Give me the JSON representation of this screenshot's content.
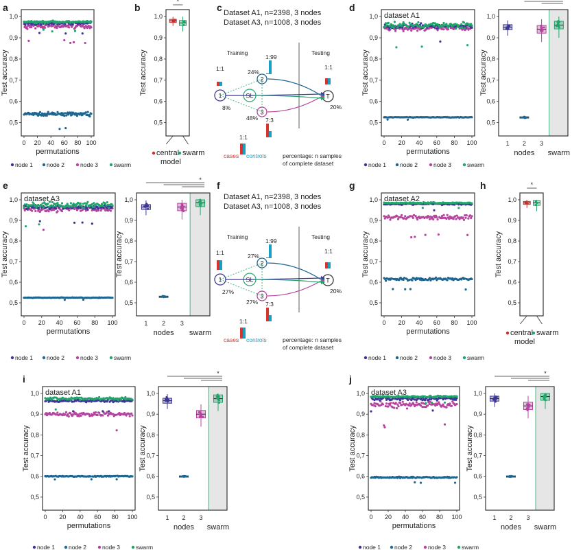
{
  "colors": {
    "node1": "#3c3696",
    "node2": "#1f6691",
    "node3": "#b5449f",
    "swarm": "#21a56a",
    "central": "#c9302c",
    "cases": "#d9342b",
    "controls": "#1a9ec4",
    "shade": "#e6e6e6"
  },
  "panel_labels": {
    "a": "a",
    "b": "b",
    "c": "c",
    "d": "d",
    "e": "e",
    "f": "f",
    "g": "g",
    "h": "h",
    "i": "i",
    "j": "j"
  },
  "common": {
    "ylabel": "Test accuracy",
    "xlabel": "permutations",
    "nodes_label": "nodes",
    "swarm_label": "swarm",
    "star": "*",
    "legend": [
      "node 1",
      "node 2",
      "node 3",
      "swarm"
    ],
    "central_legend": [
      "central\nmodel",
      "swarm"
    ],
    "node_ticks": [
      "1",
      "2",
      "3"
    ],
    "y_ticks": [
      "0,5",
      "0,6",
      "0,7",
      "0,8",
      "0,9",
      "1,0"
    ],
    "x_ticks": [
      "0",
      "20",
      "40",
      "60",
      "80",
      "100"
    ]
  },
  "diagram": {
    "c": {
      "line1": "Dataset A1, n=2398, 3 nodes",
      "line2": "Dataset A3, n=1008, 3 nodes",
      "training": "Training",
      "testing": "Testing",
      "sl": "SL",
      "n1": "1",
      "n2": "2",
      "n3": "3",
      "t": "T",
      "p1": "8%",
      "p2": "24%",
      "p3": "48%",
      "pt": "20%",
      "r1": "1:1",
      "r2": "1:99",
      "r3": "7:3",
      "rt": "1:1",
      "rkey": "1:1",
      "cases": "cases",
      "controls": "controls",
      "note1": "percentage: n samples",
      "note2": "of complete dataset"
    },
    "f": {
      "line1": "Dataset A1, n=2398, 3 nodes",
      "line2": "Dataset A3, n=1008, 3 nodes",
      "training": "Training",
      "testing": "Testing",
      "sl": "SL",
      "n1": "1",
      "n2": "2",
      "n3": "3",
      "t": "T",
      "p1": "27%",
      "p2": "27%",
      "p3": "27%",
      "pt": "20%",
      "r1": "1:1",
      "r2": "1:99",
      "r3": "7:3",
      "rt": "1:1",
      "rkey": "1:1",
      "cases": "cases",
      "controls": "controls",
      "note1": "percentage: n samples",
      "note2": "of complete dataset"
    }
  },
  "chart_data": [
    {
      "panel": "a",
      "type": "scatter",
      "title": "",
      "xlabel": "permutations",
      "ylabel": "Test accuracy",
      "xlim": [
        0,
        100
      ],
      "ylim": [
        0.45,
        1.02
      ],
      "series": [
        {
          "name": "node 1",
          "mean": 0.97,
          "spread": 0.01
        },
        {
          "name": "node 2",
          "mean": 0.54,
          "spread": 0.012
        },
        {
          "name": "node 3",
          "mean": 0.955,
          "spread": 0.015
        },
        {
          "name": "swarm",
          "mean": 0.975,
          "spread": 0.008
        }
      ]
    },
    {
      "panel": "b",
      "type": "box",
      "categories": [
        "central model",
        "swarm"
      ],
      "medians": [
        0.98,
        0.97
      ],
      "ylim": [
        0.45,
        1.02
      ],
      "significance": "*"
    },
    {
      "panel": "d",
      "type": "scatter",
      "title": "dataset A1",
      "xlabel": "permutations",
      "ylabel": "Test accuracy",
      "xlim": [
        0,
        100
      ],
      "ylim": [
        0.45,
        1.02
      ],
      "series": [
        {
          "name": "node 1",
          "mean": 0.955,
          "spread": 0.015
        },
        {
          "name": "node 2",
          "mean": 0.525,
          "spread": 0.002
        },
        {
          "name": "node 3",
          "mean": 0.945,
          "spread": 0.018
        },
        {
          "name": "swarm",
          "mean": 0.96,
          "spread": 0.02
        }
      ]
    },
    {
      "panel": "d-box",
      "type": "box",
      "categories": [
        "1",
        "2",
        "3",
        "swarm"
      ],
      "medians": [
        0.95,
        0.525,
        0.94,
        0.96
      ],
      "ylim": [
        0.45,
        1.02
      ],
      "significance": "*"
    },
    {
      "panel": "e",
      "type": "scatter",
      "title": "dataset A3",
      "xlabel": "permutations",
      "ylabel": "Test accuracy",
      "xlim": [
        0,
        100
      ],
      "ylim": [
        0.45,
        1.02
      ],
      "series": [
        {
          "name": "node 1",
          "mean": 0.965,
          "spread": 0.015
        },
        {
          "name": "node 2",
          "mean": 0.525,
          "spread": 0.002
        },
        {
          "name": "node 3",
          "mean": 0.955,
          "spread": 0.02
        },
        {
          "name": "swarm",
          "mean": 0.975,
          "spread": 0.02
        }
      ]
    },
    {
      "panel": "e-box",
      "type": "box",
      "categories": [
        "1",
        "2",
        "3",
        "swarm"
      ],
      "medians": [
        0.965,
        0.53,
        0.965,
        0.985
      ],
      "ylim": [
        0.45,
        1.02
      ],
      "significance": "*"
    },
    {
      "panel": "g",
      "type": "scatter",
      "title": "dataset A2",
      "xlabel": "permutations",
      "ylabel": "Test accuracy",
      "xlim": [
        0,
        100
      ],
      "ylim": [
        0.45,
        1.02
      ],
      "series": [
        {
          "name": "node 1",
          "mean": 0.98,
          "spread": 0.006
        },
        {
          "name": "node 2",
          "mean": 0.615,
          "spread": 0.01
        },
        {
          "name": "node 3",
          "mean": 0.915,
          "spread": 0.018
        },
        {
          "name": "swarm",
          "mean": 0.985,
          "spread": 0.005
        }
      ]
    },
    {
      "panel": "h",
      "type": "box",
      "categories": [
        "central model",
        "swarm"
      ],
      "medians": [
        0.985,
        0.985
      ],
      "ylim": [
        0.45,
        1.02
      ],
      "significance": "*"
    },
    {
      "panel": "i",
      "type": "scatter",
      "title": "dataset A1",
      "xlabel": "permutations",
      "ylabel": "Test accuracy",
      "xlim": [
        0,
        100
      ],
      "ylim": [
        0.45,
        1.02
      ],
      "series": [
        {
          "name": "node 1",
          "mean": 0.965,
          "spread": 0.01
        },
        {
          "name": "node 2",
          "mean": 0.6,
          "spread": 0.003
        },
        {
          "name": "node 3",
          "mean": 0.9,
          "spread": 0.015
        },
        {
          "name": "swarm",
          "mean": 0.975,
          "spread": 0.01
        }
      ]
    },
    {
      "panel": "i-box",
      "type": "box",
      "categories": [
        "1",
        "2",
        "3",
        "swarm"
      ],
      "medians": [
        0.965,
        0.6,
        0.9,
        0.975
      ],
      "ylim": [
        0.45,
        1.02
      ],
      "significance": "*"
    },
    {
      "panel": "j",
      "type": "scatter",
      "title": "dataset A3",
      "xlabel": "permutations",
      "ylabel": "Test accuracy",
      "xlim": [
        0,
        100
      ],
      "ylim": [
        0.45,
        1.02
      ],
      "series": [
        {
          "name": "node 1",
          "mean": 0.975,
          "spread": 0.012
        },
        {
          "name": "node 2",
          "mean": 0.595,
          "spread": 0.005
        },
        {
          "name": "node 3",
          "mean": 0.945,
          "spread": 0.02
        },
        {
          "name": "swarm",
          "mean": 0.985,
          "spread": 0.006
        }
      ]
    },
    {
      "panel": "j-box",
      "type": "box",
      "categories": [
        "1",
        "2",
        "3",
        "swarm"
      ],
      "medians": [
        0.975,
        0.6,
        0.94,
        0.985
      ],
      "ylim": [
        0.45,
        1.02
      ],
      "significance": "*"
    }
  ]
}
